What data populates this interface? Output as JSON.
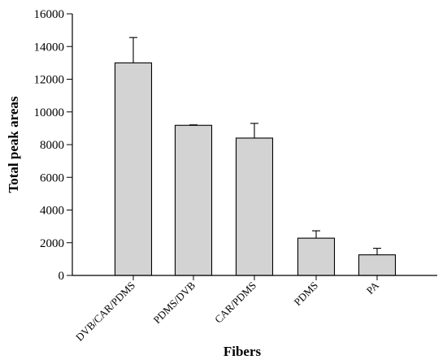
{
  "chart_data": {
    "type": "bar",
    "xlabel": "Fibers",
    "ylabel": "Total peak areas",
    "categories": [
      "DVB/CAR/PDMS",
      "PDMS/DVB",
      "CAR/PDMS",
      "PDMS",
      "PA"
    ],
    "values": [
      13000,
      9180,
      8400,
      2280,
      1260
    ],
    "errors": [
      1550,
      30,
      900,
      450,
      400
    ],
    "ylim": [
      0,
      16000
    ],
    "yticks": [
      0,
      2000,
      4000,
      6000,
      8000,
      10000,
      12000,
      14000,
      16000
    ],
    "grid": false,
    "bar_color": "#d3d3d3",
    "edge_color": "#000000"
  }
}
